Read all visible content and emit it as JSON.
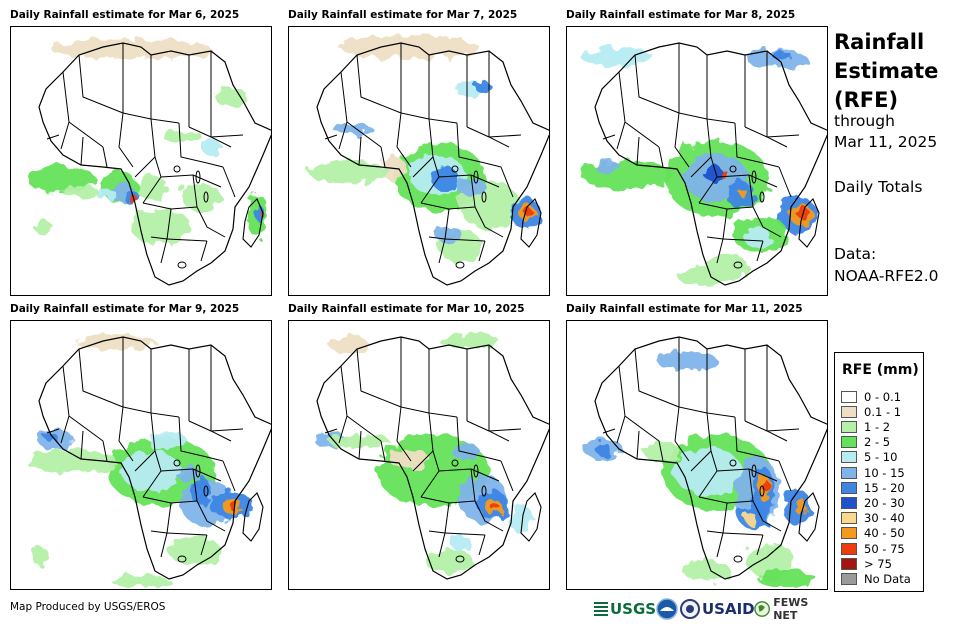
{
  "panels": [
    {
      "title": "Daily Rainfall estimate for Mar 6, 2025"
    },
    {
      "title": "Daily Rainfall estimate for Mar 7, 2025"
    },
    {
      "title": "Daily Rainfall estimate for Mar 8, 2025"
    },
    {
      "title": "Daily Rainfall estimate for Mar 9, 2025"
    },
    {
      "title": "Daily Rainfall estimate for Mar 10, 2025"
    },
    {
      "title": "Daily Rainfall estimate for Mar 11, 2025"
    }
  ],
  "sidebar": {
    "title_line1": "Rainfall",
    "title_line2": "Estimate",
    "title_line3": "(RFE)",
    "through_label": "through",
    "through_date": "Mar 11, 2025",
    "totals_label": "Daily Totals",
    "data_label": "Data:",
    "data_source": "NOAA-RFE2.0"
  },
  "legend": {
    "title": "RFE (mm)",
    "items": [
      {
        "label": "0 - 0.1",
        "color": "#ffffff"
      },
      {
        "label": "0.1 - 1",
        "color": "#eedfc4"
      },
      {
        "label": "1 - 2",
        "color": "#b4f0a8"
      },
      {
        "label": "2 - 5",
        "color": "#64e25a"
      },
      {
        "label": "5 - 10",
        "color": "#b6ecf2"
      },
      {
        "label": "10 - 15",
        "color": "#7fb4ea"
      },
      {
        "label": "15 - 20",
        "color": "#3d86e4"
      },
      {
        "label": "20 - 30",
        "color": "#1c52cc"
      },
      {
        "label": "30 - 40",
        "color": "#fad88c"
      },
      {
        "label": "40 - 50",
        "color": "#f49b1e"
      },
      {
        "label": "50 - 75",
        "color": "#ee3c0f"
      },
      {
        "label": "> 75",
        "color": "#a31413"
      },
      {
        "label": "No Data",
        "color": "#9a9a9a"
      }
    ]
  },
  "footer": {
    "credit": "Map Produced by USGS/EROS",
    "logo_usgs": "USGS",
    "logo_usaid": "USAID",
    "logo_fewsnet": "FEWS NET"
  },
  "colors": {
    "land": "#ffffff",
    "border": "#000000"
  }
}
